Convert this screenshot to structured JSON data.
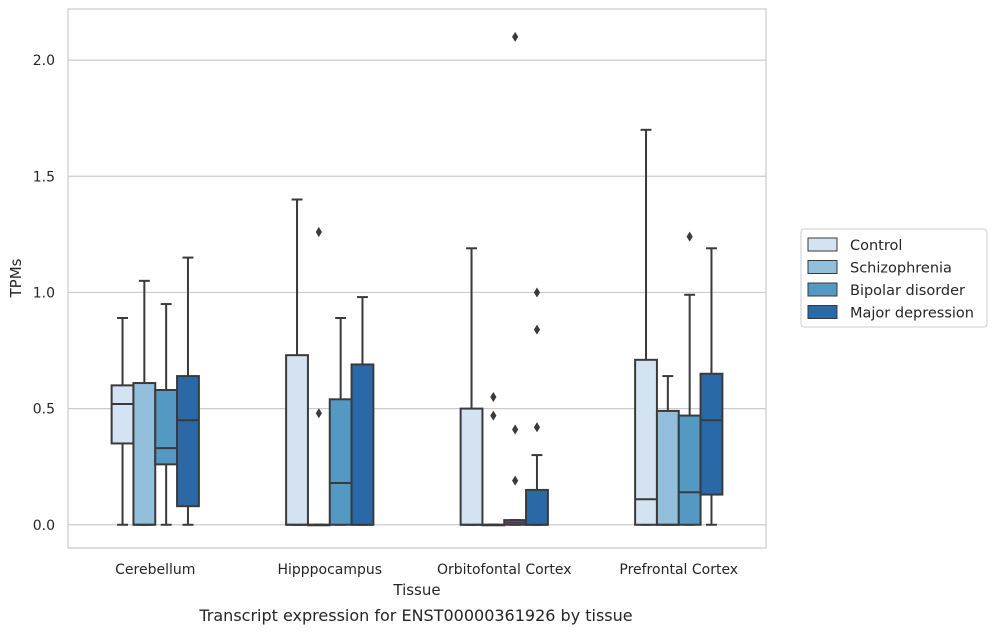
{
  "caption": "Transcript expression for ENST00000361926 by tissue",
  "chart_data": {
    "type": "box",
    "xlabel": "Tissue",
    "ylabel": "TPMs",
    "ylim": [
      -0.1,
      2.22
    ],
    "yticks": [
      0.0,
      0.5,
      1.0,
      1.5,
      2.0
    ],
    "ytick_labels": [
      "0.0",
      "0.5",
      "1.0",
      "1.5",
      "2.0"
    ],
    "grid": "horizontal",
    "legend_position": "right",
    "categories": [
      "Cerebellum",
      "Hipppocampus",
      "Orbitofontal Cortex",
      "Prefrontal Cortex"
    ],
    "series": [
      {
        "name": "Control",
        "color": "#d3e3f1",
        "boxes": [
          {
            "whislo": 0.0,
            "q1": 0.35,
            "med": 0.52,
            "q3": 0.6,
            "whishi": 0.89,
            "fliers": []
          },
          {
            "whislo": 0.0,
            "q1": 0.0,
            "med": 0.0,
            "q3": 0.73,
            "whishi": 1.4,
            "fliers": []
          },
          {
            "whislo": 0.0,
            "q1": 0.0,
            "med": 0.0,
            "q3": 0.5,
            "whishi": 1.19,
            "fliers": []
          },
          {
            "whislo": 0.0,
            "q1": 0.0,
            "med": 0.11,
            "q3": 0.71,
            "whishi": 1.7,
            "fliers": []
          }
        ]
      },
      {
        "name": "Schizophrenia",
        "color": "#92c0dc",
        "boxes": [
          {
            "whislo": 0.0,
            "q1": 0.0,
            "med": 0.0,
            "q3": 0.61,
            "whishi": 1.05,
            "fliers": []
          },
          {
            "whislo": 0.0,
            "q1": 0.0,
            "med": 0.0,
            "q3": 0.0,
            "whishi": 0.0,
            "fliers": [
              0.48,
              1.26
            ]
          },
          {
            "whislo": 0.0,
            "q1": 0.0,
            "med": 0.0,
            "q3": 0.0,
            "whishi": 0.0,
            "fliers": [
              0.47,
              0.55
            ]
          },
          {
            "whislo": 0.0,
            "q1": 0.0,
            "med": 0.0,
            "q3": 0.49,
            "whishi": 0.64,
            "fliers": []
          }
        ]
      },
      {
        "name": "Bipolar disorder",
        "color": "#5499c4",
        "boxes": [
          {
            "whislo": 0.0,
            "q1": 0.26,
            "med": 0.33,
            "q3": 0.58,
            "whishi": 0.95,
            "fliers": []
          },
          {
            "whislo": 0.0,
            "q1": 0.0,
            "med": 0.18,
            "q3": 0.54,
            "whishi": 0.89,
            "fliers": []
          },
          {
            "whislo": 0.0,
            "q1": 0.0,
            "med": 0.01,
            "q3": 0.02,
            "whishi": 0.02,
            "fliers": [
              0.19,
              0.41,
              2.1
            ]
          },
          {
            "whislo": 0.0,
            "q1": 0.0,
            "med": 0.14,
            "q3": 0.47,
            "whishi": 0.99,
            "fliers": [
              1.24
            ]
          }
        ]
      },
      {
        "name": "Major depression",
        "color": "#2a69a8",
        "boxes": [
          {
            "whislo": 0.0,
            "q1": 0.08,
            "med": 0.45,
            "q3": 0.64,
            "whishi": 1.15,
            "fliers": []
          },
          {
            "whislo": 0.0,
            "q1": 0.0,
            "med": 0.0,
            "q3": 0.69,
            "whishi": 0.98,
            "fliers": []
          },
          {
            "whislo": 0.0,
            "q1": 0.0,
            "med": 0.0,
            "q3": 0.15,
            "whishi": 0.3,
            "fliers": [
              0.42,
              0.84,
              1.0
            ]
          },
          {
            "whislo": 0.0,
            "q1": 0.13,
            "med": 0.45,
            "q3": 0.65,
            "whishi": 1.19,
            "fliers": []
          }
        ]
      }
    ]
  }
}
